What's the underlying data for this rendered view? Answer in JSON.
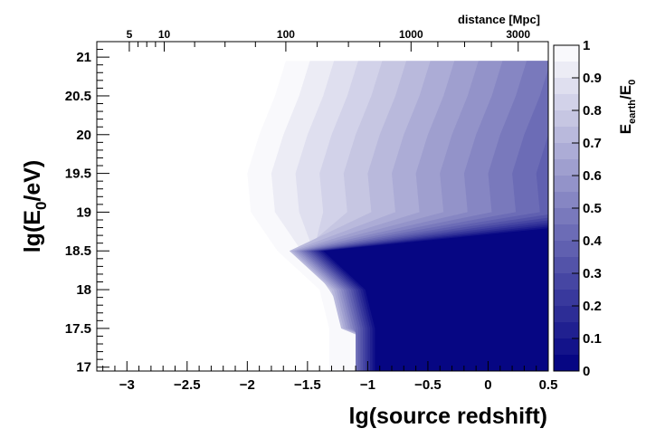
{
  "chart_data": {
    "type": "heatmap",
    "title": "",
    "xlabel": "lg(source redshift)",
    "ylabel_main": "lg(E",
    "ylabel_sub": "0",
    "ylabel_tail": "/eV)",
    "xlim": [
      -3.25,
      0.5
    ],
    "ylim": [
      16.95,
      21.2
    ],
    "x_ticks": [
      -3,
      -2.5,
      -2,
      -1.5,
      -1,
      -0.5,
      0,
      0.5
    ],
    "x_tick_labels": [
      "−3",
      "−2.5",
      "−2",
      "−1.5",
      "−1",
      "−0.5",
      "0",
      "0.5"
    ],
    "y_ticks": [
      17,
      17.5,
      18,
      18.5,
      19,
      19.5,
      20,
      20.5,
      21
    ],
    "y_tick_labels": [
      "17",
      "17.5",
      "18",
      "18.5",
      "19",
      "19.5",
      "20",
      "20.5",
      "21"
    ],
    "top_axis": {
      "title": "distance [Mpc]",
      "tick_labels": [
        "5",
        "10",
        "100",
        "1000",
        "3000"
      ],
      "tick_values": [
        5,
        10,
        100,
        1000,
        3000
      ],
      "tick_x_positions": [
        -2.98,
        -2.69,
        -1.68,
        -0.64,
        0.25
      ]
    },
    "colorbar": {
      "label_main": "E",
      "label_sub1": "earth",
      "label_mid": "/E",
      "label_sub2": "0",
      "range": [
        0,
        1
      ],
      "ticks": [
        0,
        0.1,
        0.2,
        0.3,
        0.4,
        0.5,
        0.6,
        0.7,
        0.8,
        0.9,
        1
      ],
      "tick_labels": [
        "0",
        "0.1",
        "0.2",
        "0.3",
        "0.4",
        "0.5",
        "0.6",
        "0.7",
        "0.8",
        "0.9",
        "1"
      ],
      "levels": 20,
      "color_high": "#ffffff",
      "color_low": "#000080"
    },
    "data_extent": {
      "x": [
        -3.1,
        0.45
      ],
      "y": [
        16.95,
        20.95
      ]
    },
    "contour_boundary": {
      "y": [
        16.95,
        17.5,
        18.0,
        18.5,
        19.0,
        19.5,
        20.0,
        20.5,
        20.95
      ],
      "x": [
        -1.32,
        -1.32,
        -1.4,
        -1.75,
        -1.97,
        -2.0,
        -1.9,
        -1.77,
        -1.68
      ]
    },
    "contour_spacing_at_value_1": [
      0.34,
      0.33,
      0.3,
      0.25,
      0.2,
      0.2,
      0.2,
      0.2,
      0.2
    ],
    "contour_spacing_slope": [
      -0.03,
      -0.07,
      -0.07,
      -0.05,
      0.0,
      0.0,
      0.0,
      0.0,
      0.0
    ],
    "grid": false,
    "legend": "colorbar-right"
  }
}
